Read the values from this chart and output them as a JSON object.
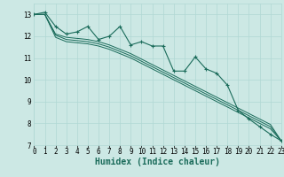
{
  "xlabel": "Humidex (Indice chaleur)",
  "ylabel": "",
  "bg_color": "#cce8e4",
  "grid_color": "#b0d8d4",
  "line_color": "#1a6b5a",
  "x_data": [
    0,
    1,
    2,
    3,
    4,
    5,
    6,
    7,
    8,
    9,
    10,
    11,
    12,
    13,
    14,
    15,
    16,
    17,
    18,
    19,
    20,
    21,
    22,
    23
  ],
  "y_main": [
    13.0,
    13.1,
    12.45,
    12.1,
    12.2,
    12.45,
    11.85,
    12.0,
    12.45,
    11.6,
    11.75,
    11.55,
    11.55,
    10.4,
    10.4,
    11.05,
    10.5,
    10.3,
    9.75,
    8.6,
    8.2,
    7.85,
    7.5,
    7.2
  ],
  "y_upper": [
    13.0,
    13.0,
    12.1,
    11.95,
    11.9,
    11.85,
    11.75,
    11.6,
    11.4,
    11.2,
    10.95,
    10.7,
    10.45,
    10.2,
    9.95,
    9.7,
    9.45,
    9.2,
    8.95,
    8.7,
    8.45,
    8.2,
    7.95,
    7.2
  ],
  "y_mid": [
    13.0,
    13.0,
    12.05,
    11.85,
    11.8,
    11.75,
    11.65,
    11.5,
    11.3,
    11.1,
    10.85,
    10.6,
    10.35,
    10.1,
    9.85,
    9.6,
    9.35,
    9.1,
    8.85,
    8.6,
    8.35,
    8.1,
    7.85,
    7.2
  ],
  "y_lower": [
    13.0,
    13.0,
    11.95,
    11.75,
    11.7,
    11.65,
    11.55,
    11.4,
    11.2,
    11.0,
    10.75,
    10.5,
    10.25,
    10.0,
    9.75,
    9.5,
    9.25,
    9.0,
    8.75,
    8.5,
    8.25,
    8.0,
    7.75,
    7.2
  ],
  "xlim": [
    0,
    23
  ],
  "ylim": [
    7,
    13.5
  ],
  "yticks": [
    7,
    8,
    9,
    10,
    11,
    12,
    13
  ],
  "xticks": [
    0,
    1,
    2,
    3,
    4,
    5,
    6,
    7,
    8,
    9,
    10,
    11,
    12,
    13,
    14,
    15,
    16,
    17,
    18,
    19,
    20,
    21,
    22,
    23
  ],
  "tick_fontsize": 5.5,
  "xlabel_fontsize": 7.0
}
